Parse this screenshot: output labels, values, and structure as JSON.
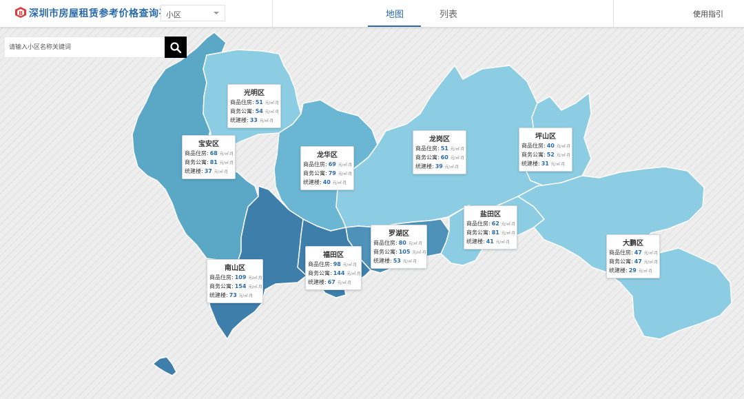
{
  "header": {
    "title": "深圳市房屋租赁参考价格查询平台",
    "type_select": {
      "value": "小区"
    },
    "tabs": [
      {
        "label": "地图",
        "active": true
      },
      {
        "label": "列表",
        "active": false
      }
    ],
    "guide_label": "使用指引"
  },
  "search": {
    "placeholder": "请输入小区名称关键词"
  },
  "units": {
    "small": "元/㎡·月",
    "large": "元/㎡·月"
  },
  "colors": {
    "accent": "#2a6aa9",
    "region_light": "#8ccde3",
    "region_mid": "#5aa7c6",
    "region_dark": "#3e7eab"
  },
  "districts": [
    {
      "name": "光明区",
      "rows": [
        {
          "label": "商品住房:",
          "value": "51"
        },
        {
          "label": "商务公寓:",
          "value": "54"
        },
        {
          "label": "统建楼:",
          "value": "33"
        }
      ]
    },
    {
      "name": "宝安区",
      "rows": [
        {
          "label": "商品住房:",
          "value": "68"
        },
        {
          "label": "商务公寓:",
          "value": "81"
        },
        {
          "label": "统建楼:",
          "value": "37"
        }
      ]
    },
    {
      "name": "龙华区",
      "rows": [
        {
          "label": "商品住房:",
          "value": "69"
        },
        {
          "label": "商务公寓:",
          "value": "79"
        },
        {
          "label": "统建楼:",
          "value": "40"
        }
      ]
    },
    {
      "name": "龙岗区",
      "rows": [
        {
          "label": "商品住房:",
          "value": "51"
        },
        {
          "label": "商务公寓:",
          "value": "60"
        },
        {
          "label": "统建楼:",
          "value": "39"
        }
      ]
    },
    {
      "name": "坪山区",
      "rows": [
        {
          "label": "商品住房:",
          "value": "40"
        },
        {
          "label": "商务公寓:",
          "value": "52"
        },
        {
          "label": "统建楼:",
          "value": "31"
        }
      ]
    },
    {
      "name": "罗湖区",
      "rows": [
        {
          "label": "商品住房:",
          "value": "80"
        },
        {
          "label": "商务公寓:",
          "value": "105"
        },
        {
          "label": "统建楼:",
          "value": "53"
        }
      ]
    },
    {
      "name": "盐田区",
      "rows": [
        {
          "label": "商品住房:",
          "value": "62"
        },
        {
          "label": "商务公寓:",
          "value": "81"
        },
        {
          "label": "统建楼:",
          "value": "41"
        }
      ]
    },
    {
      "name": "福田区",
      "rows": [
        {
          "label": "商品住房:",
          "value": "98"
        },
        {
          "label": "商务公寓:",
          "value": "144"
        },
        {
          "label": "统建楼:",
          "value": "67"
        }
      ]
    },
    {
      "name": "南山区",
      "rows": [
        {
          "label": "商品住房:",
          "value": "109"
        },
        {
          "label": "商务公寓:",
          "value": "154"
        },
        {
          "label": "统建楼:",
          "value": "73"
        }
      ]
    },
    {
      "name": "大鹏区",
      "rows": [
        {
          "label": "商品住房:",
          "value": "47"
        },
        {
          "label": "商务公寓:",
          "value": "47"
        },
        {
          "label": "统建楼:",
          "value": "29"
        }
      ]
    }
  ]
}
